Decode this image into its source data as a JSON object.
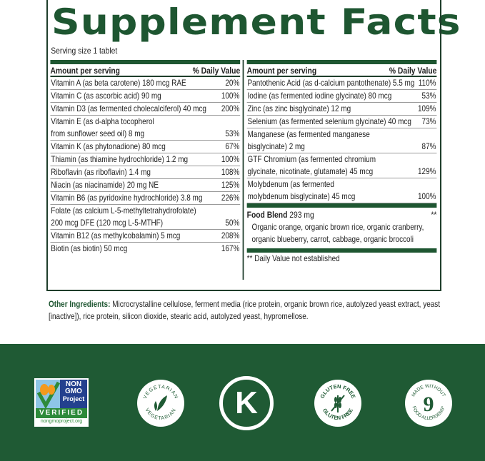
{
  "title": "Supplement Facts",
  "serving_size": "Serving size 1 tablet",
  "header": {
    "amount": "Amount per serving",
    "dv": "% Daily Value"
  },
  "left_rows": [
    {
      "name": "Vitamin A (as beta carotene) 180 mcg RAE",
      "dv": "20%"
    },
    {
      "name": "Vitamin C (as ascorbic acid) 90 mg",
      "dv": "100%"
    },
    {
      "name": "Vitamin D3 (as fermented cholecalciferol) 40 mcg",
      "dv": "200%"
    },
    {
      "name": "Vitamin E (as d-alpha tocopherol\nfrom sunflower seed oil) 8 mg",
      "dv": "53%"
    },
    {
      "name": "Vitamin K (as phytonadione) 80 mcg",
      "dv": "67%"
    },
    {
      "name": "Thiamin (as thiamine hydrochloride) 1.2 mg",
      "dv": "100%"
    },
    {
      "name": "Riboflavin (as riboflavin) 1.4 mg",
      "dv": "108%"
    },
    {
      "name": "Niacin (as niacinamide) 20 mg NE",
      "dv": "125%"
    },
    {
      "name": "Vitamin B6 (as pyridoxine hydrochloride) 3.8 mg",
      "dv": "226%"
    },
    {
      "name": "Folate (as calcium L-5-methyltetrahydrofolate)\n200 mcg DFE (120 mcg L-5-MTHF)",
      "dv": "50%"
    },
    {
      "name": "Vitamin B12 (as methylcobalamin) 5 mcg",
      "dv": "208%"
    },
    {
      "name": "Biotin (as biotin) 50 mcg",
      "dv": "167%"
    }
  ],
  "right_rows": [
    {
      "name": "Pantothenic Acid (as d-calcium pantothenate) 5.5 mg",
      "dv": "110%"
    },
    {
      "name": "Iodine (as fermented iodine glycinate) 80 mcg",
      "dv": "53%"
    },
    {
      "name": "Zinc (as zinc bisglycinate) 12 mg",
      "dv": "109%"
    },
    {
      "name": "Selenium (as fermented selenium glycinate) 40 mcg",
      "dv": "73%"
    },
    {
      "name": "Manganese (as fermented manganese\nbisglycinate) 2 mg",
      "dv": "87%"
    },
    {
      "name": "GTF Chromium (as fermented chromium\nglycinate, nicotinate, glutamate) 45 mcg",
      "dv": "129%"
    },
    {
      "name": "Molybdenum (as fermented\nmolybdenum bisglycinate) 45 mcg",
      "dv": "100%"
    }
  ],
  "food_blend": {
    "label": "Food Blend",
    "amount": "293 mg",
    "dv": "**",
    "ingredients": "Organic orange, organic brown rice, organic cranberry, organic blueberry, carrot, cabbage, organic broccoli"
  },
  "footnote": "** Daily Value not established",
  "other_ingredients": {
    "label": "Other Ingredients:",
    "text": " Microcrystalline cellulose, ferment media (rice protein, organic brown rice, autolyzed yeast extract, yeast [inactive]), rice protein, silicon dioxide, stearic acid, autolyzed yeast, hypromellose."
  },
  "badges": {
    "nongmo": {
      "line1": "NON",
      "line2": "GMO",
      "line3": "Project",
      "verified": "VERIFIED",
      "url": "nongmoproject.org"
    },
    "vegetarian": "VEGETARIAN",
    "kosher": "K",
    "gluten_free": "GLUTEN FREE",
    "allergens": {
      "top": "MADE WITHOUT",
      "number": "9",
      "bottom": "FOOD ALLERGENS*"
    }
  },
  "colors": {
    "brand_green": "#1e5631",
    "band_green": "#1f5a34"
  }
}
